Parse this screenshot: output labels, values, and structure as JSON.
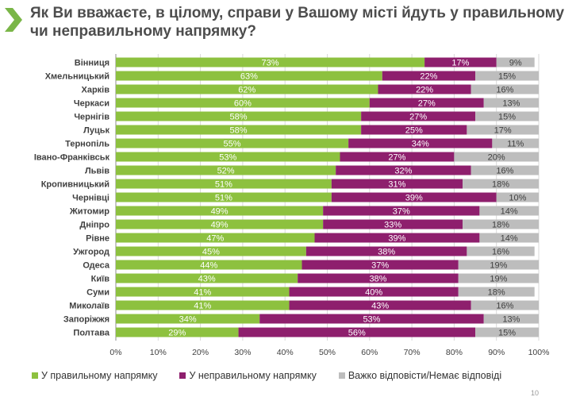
{
  "title": "Як Ви вважаєте, в цілому, справи у Вашому місті йдуть у правильному чи неправильному напрямку?",
  "page_number": "10",
  "colors": {
    "green": "#8dc13f",
    "purple": "#8e1f6d",
    "gray": "#bdbdbd",
    "accent": "#7ab648"
  },
  "chart_data": {
    "type": "bar",
    "orientation": "horizontal",
    "stacked": true,
    "title": "Як Ви вважаєте, в цілому, справи у Вашому місті йдуть у правильному чи неправильному напрямку?",
    "categories": [
      "Вінниця",
      "Хмельницький",
      "Харків",
      "Черкаси",
      "Чернігів",
      "Луцьк",
      "Тернопіль",
      "Івано-Франківськ",
      "Львів",
      "Кропивницький",
      "Чернівці",
      "Житомир",
      "Дніпро",
      "Рівне",
      "Ужгород",
      "Одеса",
      "Київ",
      "Суми",
      "Миколаїв",
      "Запоріжжя",
      "Полтава"
    ],
    "series": [
      {
        "name": "У правильному напрямку",
        "color": "#8dc13f",
        "values": [
          73,
          63,
          62,
          60,
          58,
          58,
          55,
          53,
          52,
          51,
          51,
          49,
          49,
          47,
          45,
          44,
          43,
          41,
          41,
          34,
          29
        ]
      },
      {
        "name": "У неправильному напрямку",
        "color": "#8e1f6d",
        "values": [
          17,
          22,
          22,
          27,
          27,
          25,
          34,
          27,
          32,
          31,
          39,
          37,
          33,
          39,
          38,
          37,
          38,
          40,
          43,
          53,
          56
        ]
      },
      {
        "name": "Важко відповісти/Немає відповіді",
        "color": "#bdbdbd",
        "values": [
          9,
          15,
          16,
          13,
          15,
          17,
          11,
          20,
          16,
          18,
          10,
          14,
          18,
          14,
          16,
          19,
          19,
          18,
          16,
          13,
          15
        ]
      }
    ],
    "xlim": [
      0,
      100
    ],
    "xticks": [
      "0%",
      "10%",
      "20%",
      "30%",
      "40%",
      "50%",
      "60%",
      "70%",
      "80%",
      "90%",
      "100%"
    ],
    "grid": true,
    "legend_position": "bottom"
  }
}
